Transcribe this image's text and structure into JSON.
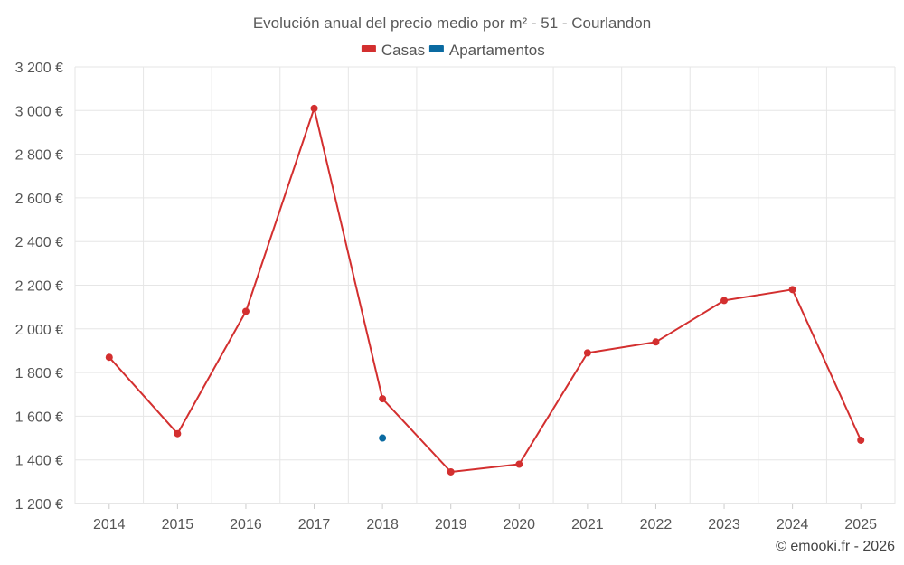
{
  "chart_data": {
    "type": "line",
    "title": "Evolución anual del precio medio por m² - 51 - Courlandon",
    "categories": [
      "2014",
      "2015",
      "2016",
      "2017",
      "2018",
      "2019",
      "2020",
      "2021",
      "2022",
      "2023",
      "2024",
      "2025"
    ],
    "series": [
      {
        "name": "Casas",
        "color": "#d32f2f",
        "values": [
          1870,
          1520,
          2080,
          3010,
          1680,
          1345,
          1380,
          1890,
          1940,
          2130,
          2180,
          1490
        ]
      },
      {
        "name": "Apartamentos",
        "color": "#0a6aa1",
        "values": [
          null,
          null,
          null,
          null,
          1500,
          null,
          null,
          null,
          null,
          null,
          null,
          null
        ]
      }
    ],
    "ylim": [
      1200,
      3200
    ],
    "yticks": [
      1200,
      1400,
      1600,
      1800,
      2000,
      2200,
      2400,
      2600,
      2800,
      3000,
      3200
    ],
    "ytick_labels": [
      "1 200 €",
      "1 400 €",
      "1 600 €",
      "1 800 €",
      "2 000 €",
      "2 200 €",
      "2 400 €",
      "2 600 €",
      "2 800 €",
      "3 000 €",
      "3 200 €"
    ],
    "grid": true,
    "legend_position": "top-center",
    "credit": "© emooki.fr - 2026"
  }
}
